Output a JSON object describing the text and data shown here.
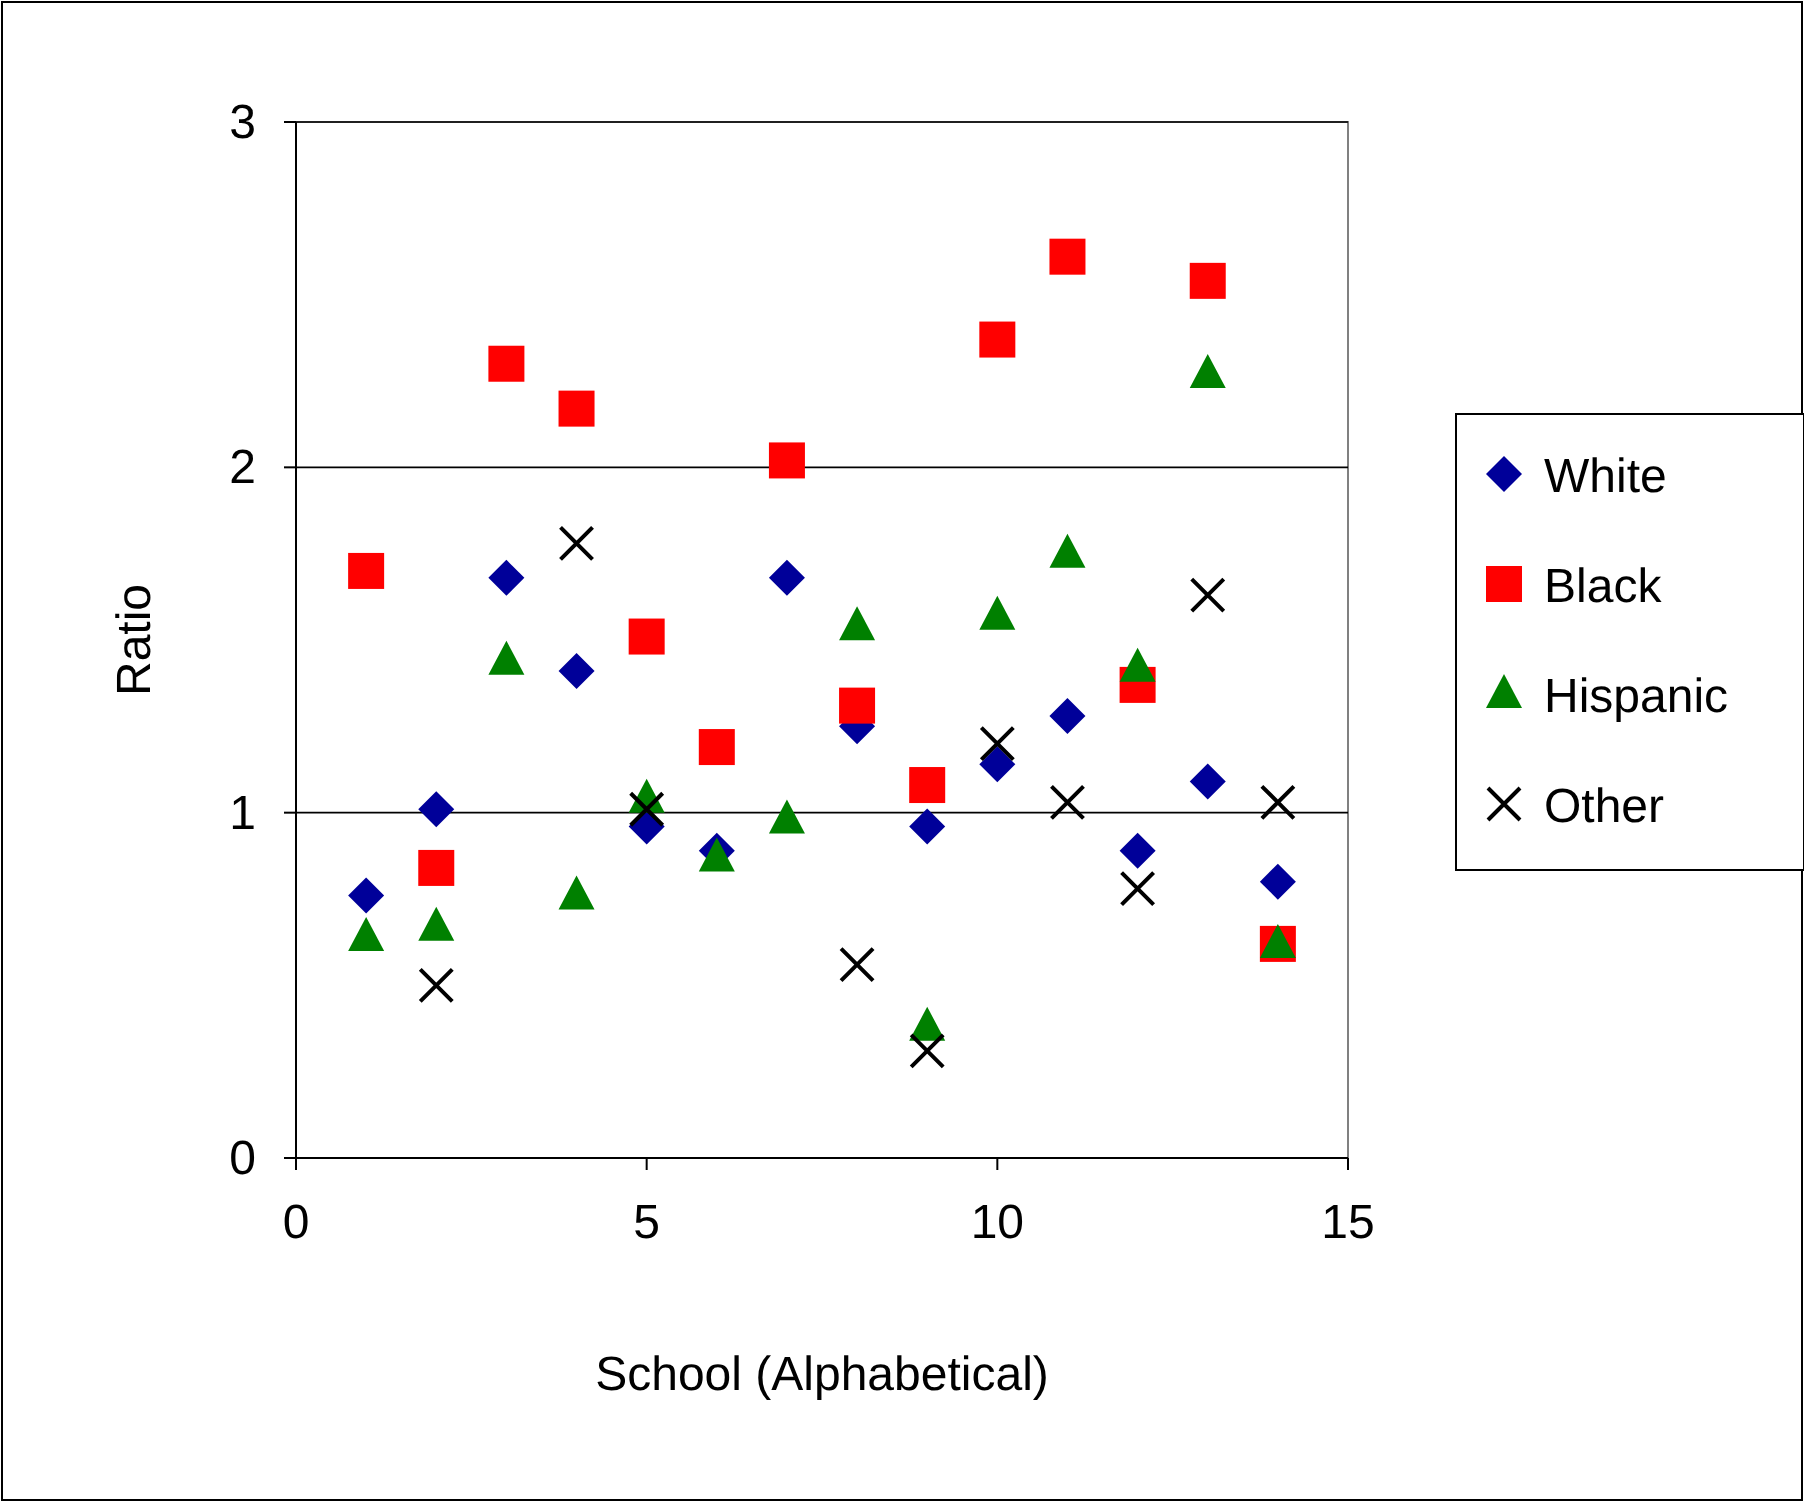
{
  "chart_data": {
    "type": "scatter",
    "xlabel": "School (Alphabetical)",
    "ylabel": "Ratio",
    "xlim": [
      0,
      15
    ],
    "xticks": [
      0,
      5,
      10,
      15
    ],
    "ylim": [
      0,
      3
    ],
    "yticks": [
      0,
      1,
      2,
      3
    ],
    "grid": "y",
    "legend": "right",
    "series": [
      {
        "name": "White",
        "color": "#000099",
        "marker": "diamond",
        "x": [
          1,
          2,
          3,
          4,
          5,
          6,
          7,
          8,
          9,
          10,
          11,
          12,
          13,
          14
        ],
        "values": [
          0.76,
          1.01,
          1.68,
          1.41,
          0.96,
          0.89,
          1.68,
          1.25,
          0.96,
          1.14,
          1.28,
          0.89,
          1.09,
          0.8
        ]
      },
      {
        "name": "Black",
        "color": "#ff0000",
        "marker": "square",
        "x": [
          1,
          2,
          3,
          4,
          5,
          6,
          7,
          8,
          9,
          10,
          11,
          12,
          13,
          14
        ],
        "values": [
          1.7,
          0.84,
          2.3,
          2.17,
          1.51,
          1.19,
          2.02,
          1.31,
          1.08,
          2.37,
          2.61,
          1.37,
          2.54,
          0.62
        ]
      },
      {
        "name": "Hispanic",
        "color": "#008000",
        "marker": "triangle",
        "x": [
          1,
          2,
          3,
          4,
          5,
          6,
          7,
          8,
          9,
          10,
          11,
          12,
          13,
          14
        ],
        "values": [
          0.64,
          0.67,
          1.44,
          0.76,
          1.04,
          0.87,
          0.98,
          1.54,
          0.38,
          1.57,
          1.75,
          1.42,
          2.27,
          0.62
        ]
      },
      {
        "name": "Other",
        "color": "#000000",
        "marker": "cross",
        "x": [
          2,
          4,
          5,
          8,
          9,
          10,
          11,
          12,
          13,
          14
        ],
        "values": [
          0.5,
          1.78,
          1.01,
          0.56,
          0.31,
          1.2,
          1.03,
          0.78,
          1.63,
          1.03
        ]
      }
    ]
  }
}
